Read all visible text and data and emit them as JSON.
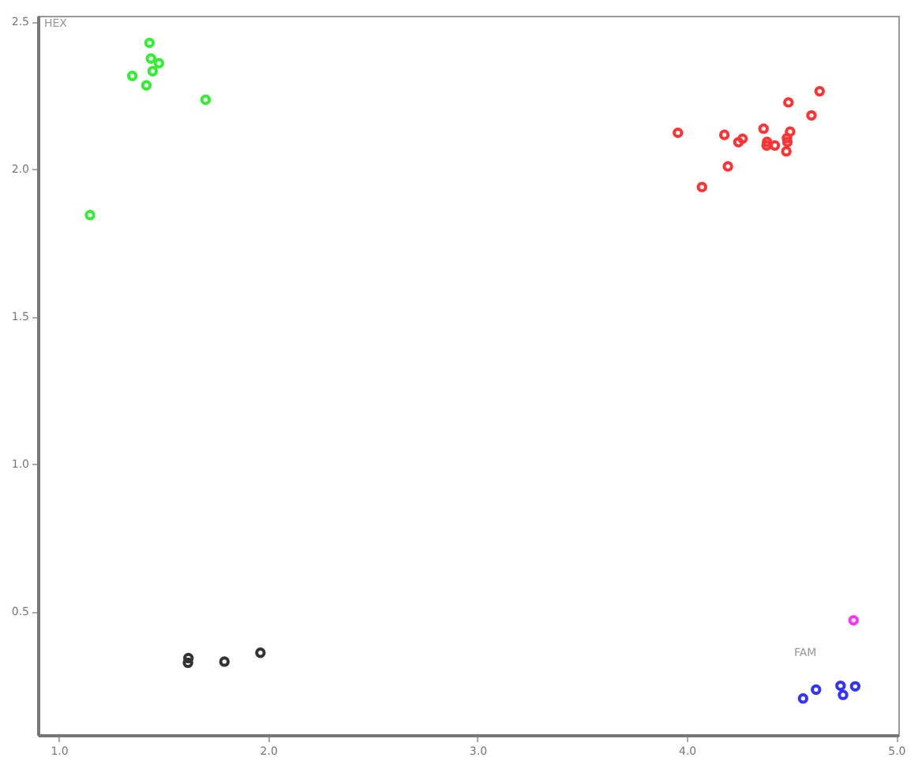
{
  "chart_data": {
    "type": "scatter",
    "xlim": [
      0.9,
      5.01
    ],
    "ylim": [
      0.08,
      2.52
    ],
    "xticks": [
      {
        "value": 1,
        "label": "1.0"
      },
      {
        "value": 2,
        "label": "2.0"
      },
      {
        "value": 3,
        "label": "3.0"
      },
      {
        "value": 4,
        "label": "4.0"
      },
      {
        "value": 5,
        "label": "5.0"
      }
    ],
    "yticks": [
      {
        "value": 0.5,
        "label": "0.5"
      },
      {
        "value": 1,
        "label": "1.0"
      },
      {
        "value": 1.5,
        "label": "1.5"
      },
      {
        "value": 2,
        "label": "2.0"
      },
      {
        "value": 2.5,
        "label": "2.5"
      }
    ],
    "grid": false,
    "marker": "circle",
    "annotations": [
      "HEX",
      "FAM"
    ],
    "series": [
      {
        "color": "#33ee33",
        "x": [
          1.433,
          1.44,
          1.478,
          1.448,
          1.351,
          1.418,
          1.701,
          1.149
        ],
        "values": [
          2.428,
          2.375,
          2.359,
          2.332,
          2.316,
          2.284,
          2.235,
          1.844
        ]
      },
      {
        "color": "#ff3333",
        "x": [
          3.957,
          4.179,
          4.246,
          4.266,
          4.196,
          4.072,
          4.366,
          4.485,
          4.634,
          4.595,
          4.493,
          4.478,
          4.48,
          4.475,
          4.383,
          4.381,
          4.42
        ],
        "values": [
          2.123,
          2.116,
          2.091,
          2.103,
          2.009,
          1.939,
          2.137,
          2.226,
          2.264,
          2.182,
          2.127,
          2.105,
          2.092,
          2.06,
          2.092,
          2.08,
          2.08
        ]
      },
      {
        "color": "#333333",
        "x": [
          1.619,
          1.617,
          1.791,
          1.963
        ],
        "values": [
          0.341,
          0.325,
          0.329,
          0.359
        ]
      },
      {
        "color": "#ff33ff",
        "x": [
          4.796
        ],
        "values": [
          0.469
        ]
      },
      {
        "color": "#3333ff",
        "x": [
          4.617,
          4.734,
          4.804,
          4.746,
          4.555
        ],
        "values": [
          0.234,
          0.247,
          0.245,
          0.216,
          0.204
        ]
      }
    ]
  }
}
